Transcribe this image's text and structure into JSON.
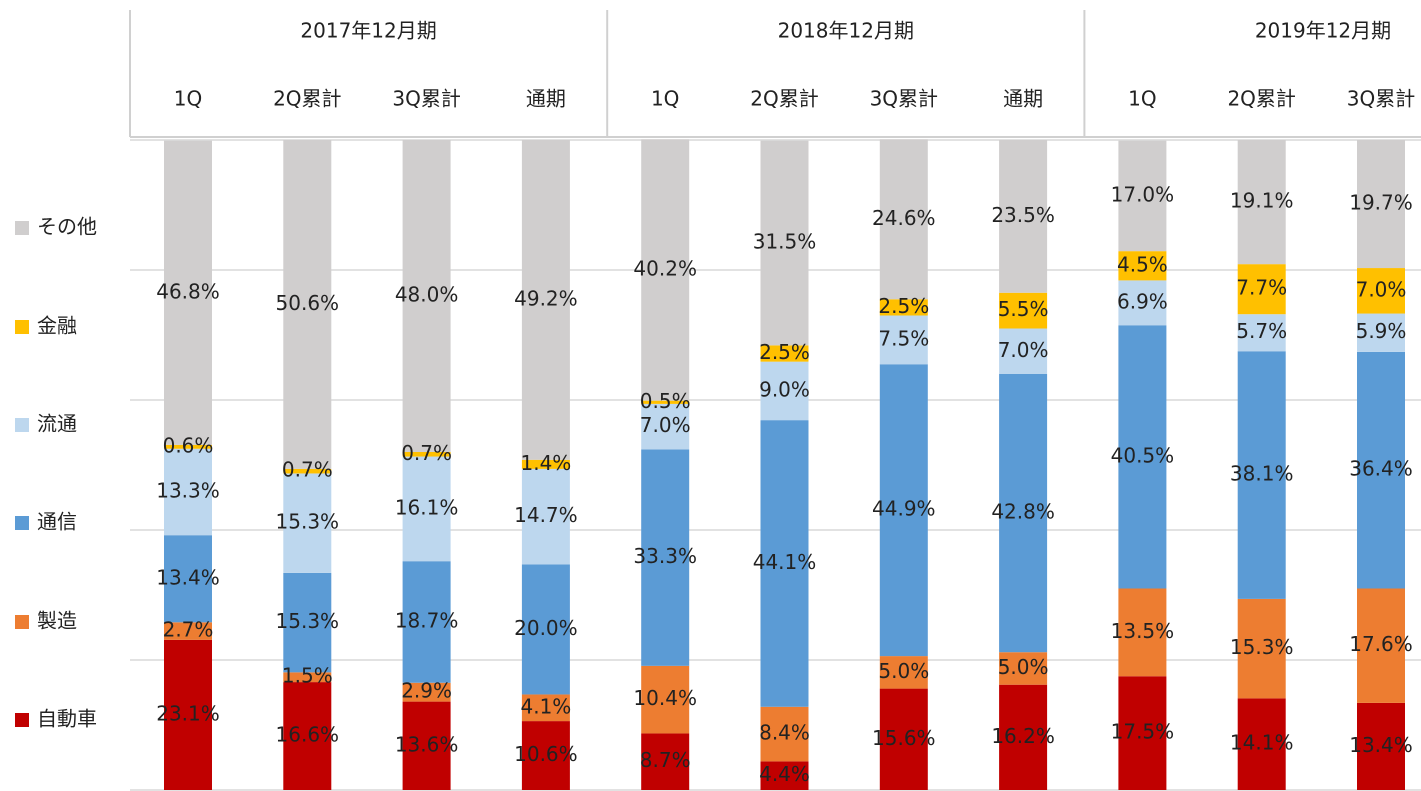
{
  "chart_data": {
    "type": "stacked_bar_100",
    "groups": [
      {
        "name": "2017年12月期",
        "categories": [
          "1Q",
          "2Q累計",
          "3Q累計",
          "通期"
        ]
      },
      {
        "name": "2018年12月期",
        "categories": [
          "1Q",
          "2Q累計",
          "3Q累計",
          "通期"
        ]
      },
      {
        "name": "2019年12月期",
        "categories": [
          "1Q",
          "2Q累計",
          "3Q累計"
        ]
      }
    ],
    "series": [
      {
        "name": "自動車",
        "color": "#c00000",
        "values": [
          23.1,
          16.6,
          13.6,
          10.6,
          8.7,
          4.4,
          15.6,
          16.2,
          17.5,
          14.1,
          13.4
        ],
        "value_labels": [
          "23.1%",
          "16.6%",
          "13.6%",
          "10.6%",
          "8.7%",
          "4.4%",
          "15.6%",
          "16.2%",
          "17.5%",
          "14.1%",
          "13.4%"
        ]
      },
      {
        "name": "製造",
        "color": "#ed7d31",
        "values": [
          2.7,
          1.5,
          2.9,
          4.1,
          10.4,
          8.4,
          5.0,
          5.0,
          13.5,
          15.3,
          17.6
        ],
        "value_labels": [
          "2.7%",
          "1.5%",
          "2.9%",
          "4.1%",
          "10.4%",
          "8.4%",
          "5.0%",
          "5.0%",
          "13.5%",
          "15.3%",
          "17.6%"
        ]
      },
      {
        "name": "通信",
        "color": "#5b9bd5",
        "values": [
          13.4,
          15.3,
          18.7,
          20.0,
          33.3,
          44.1,
          44.9,
          42.8,
          40.5,
          38.1,
          36.4
        ],
        "value_labels": [
          "13.4%",
          "15.3%",
          "18.7%",
          "20.0%",
          "33.3%",
          "44.1%",
          "44.9%",
          "42.8%",
          "40.5%",
          "38.1%",
          "36.4%"
        ]
      },
      {
        "name": "流通",
        "color": "#bdd7ee",
        "values": [
          13.3,
          15.3,
          16.1,
          14.7,
          7.0,
          9.0,
          7.5,
          7.0,
          6.9,
          5.7,
          5.9
        ],
        "value_labels": [
          "13.3%",
          "15.3%",
          "16.1%",
          "14.7%",
          "7.0%",
          "9.0%",
          "7.5%",
          "7.0%",
          "6.9%",
          "5.7%",
          "5.9%"
        ]
      },
      {
        "name": "金融",
        "color": "#ffc000",
        "values": [
          0.6,
          0.7,
          0.7,
          1.4,
          0.5,
          2.5,
          2.5,
          5.5,
          4.5,
          7.7,
          7.0
        ],
        "value_labels": [
          "0.6%",
          "0.7%",
          "0.7%",
          "1.4%",
          "0.5%",
          "2.5%",
          "2.5%",
          "5.5%",
          "4.5%",
          "7.7%",
          "7.0%"
        ]
      },
      {
        "name": "その他",
        "color": "#d0cece",
        "values": [
          46.8,
          50.6,
          48.0,
          49.2,
          40.2,
          31.5,
          24.6,
          23.5,
          17.0,
          19.1,
          19.7
        ],
        "value_labels": [
          "46.8%",
          "50.6%",
          "48.0%",
          "49.2%",
          "40.2%",
          "31.5%",
          "24.6%",
          "23.5%",
          "17.0%",
          "19.1%",
          "19.7%"
        ]
      }
    ],
    "ylim": [
      0,
      100
    ],
    "yticks": [
      0,
      20,
      40,
      60,
      80,
      100
    ],
    "grid": true
  }
}
